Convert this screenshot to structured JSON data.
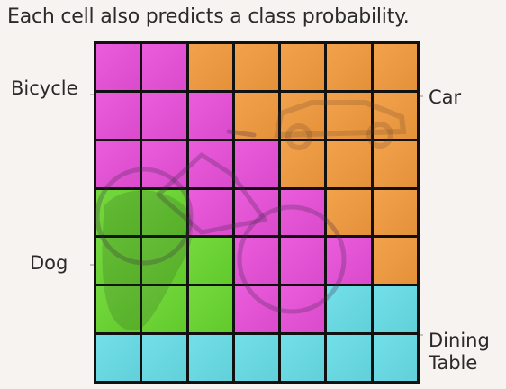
{
  "headline": "Each cell also predicts a class probability.",
  "labels": {
    "bicycle": "Bicycle",
    "car": "Car",
    "dog": "Dog",
    "dining_line1": "Dining",
    "dining_line2": "Table"
  },
  "colors": {
    "pink": "#e84fd9",
    "orange": "#f29a3d",
    "green": "#68d62e",
    "cyan": "#67dde7",
    "grid": "#111111",
    "background": "#f7f3f0"
  },
  "grid": {
    "rows": 7,
    "cols": 7,
    "cells": [
      [
        "pink",
        "pink",
        "orange",
        "orange",
        "orange",
        "orange",
        "orange"
      ],
      [
        "pink",
        "pink",
        "pink",
        "orange",
        "orange",
        "orange",
        "orange"
      ],
      [
        "pink",
        "pink",
        "pink",
        "pink",
        "orange",
        "orange",
        "orange"
      ],
      [
        "green",
        "green",
        "pink",
        "pink",
        "pink",
        "orange",
        "orange"
      ],
      [
        "green",
        "green",
        "green",
        "pink",
        "pink",
        "pink",
        "orange"
      ],
      [
        "green",
        "green",
        "green",
        "pink",
        "pink",
        "cyan",
        "cyan"
      ],
      [
        "cyan",
        "cyan",
        "cyan",
        "cyan",
        "cyan",
        "cyan",
        "cyan"
      ]
    ]
  }
}
